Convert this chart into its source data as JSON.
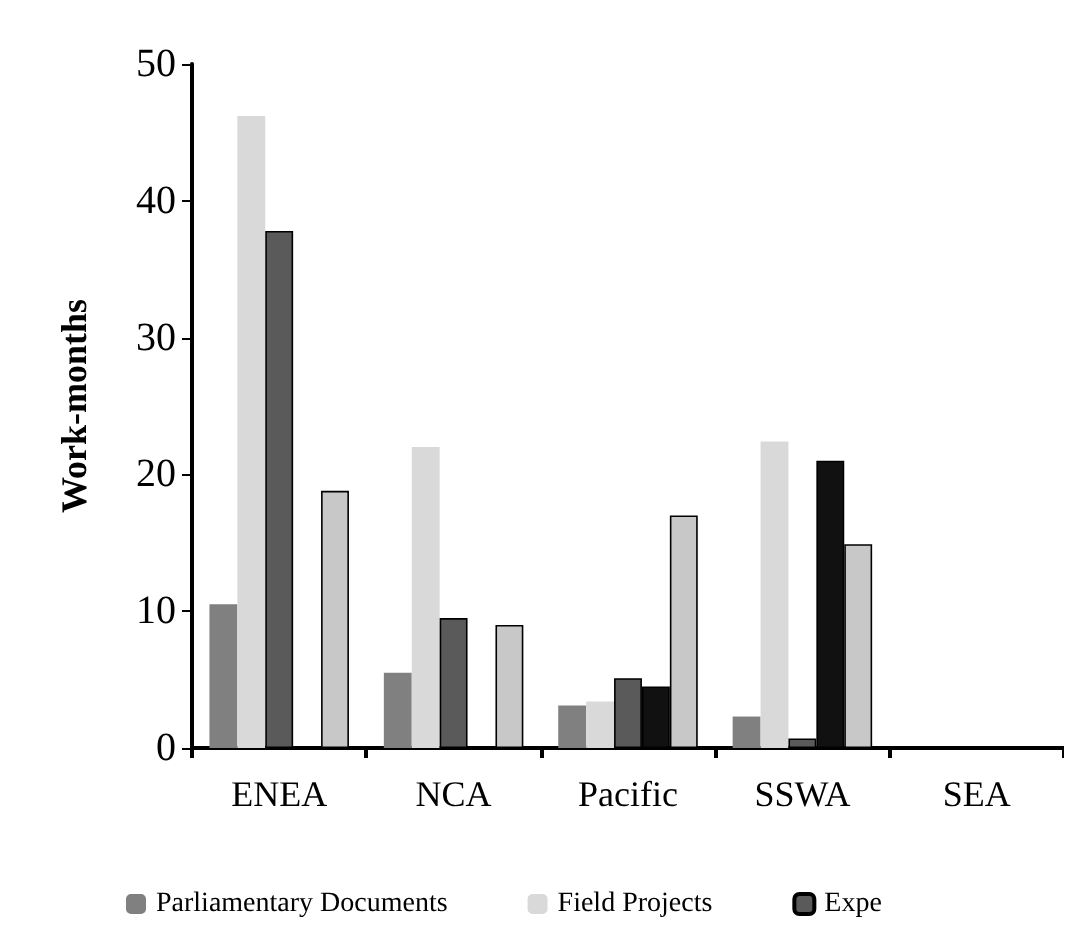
{
  "chart_data": {
    "type": "bar",
    "ylabel": "Work-months",
    "categories": [
      "ENEA",
      "NCA",
      "Pacific",
      "SSWA",
      "SEA"
    ],
    "series": [
      {
        "name": "Parliamentary Documents",
        "color": "#808080",
        "values": [
          10.5,
          5.5,
          3.1,
          2.3,
          null
        ]
      },
      {
        "name": "Field Projects",
        "color": "#d9d9d9",
        "values": [
          46.2,
          22,
          3.4,
          22.4,
          null
        ]
      },
      {
        "name": "Expe",
        "color": "#5a5a5a",
        "values": [
          37.8,
          9.5,
          5.1,
          0.7,
          null
        ]
      },
      {
        "color": "#111111",
        "values": [
          null,
          null,
          4.5,
          21,
          null
        ]
      },
      {
        "color": "#c8c8c8",
        "values": [
          18.8,
          9,
          17,
          14.9,
          null
        ]
      }
    ],
    "ylim": [
      0,
      50
    ],
    "yticks": [
      0,
      10,
      20,
      30,
      40,
      50
    ],
    "grid": false,
    "legend": "bottom"
  }
}
